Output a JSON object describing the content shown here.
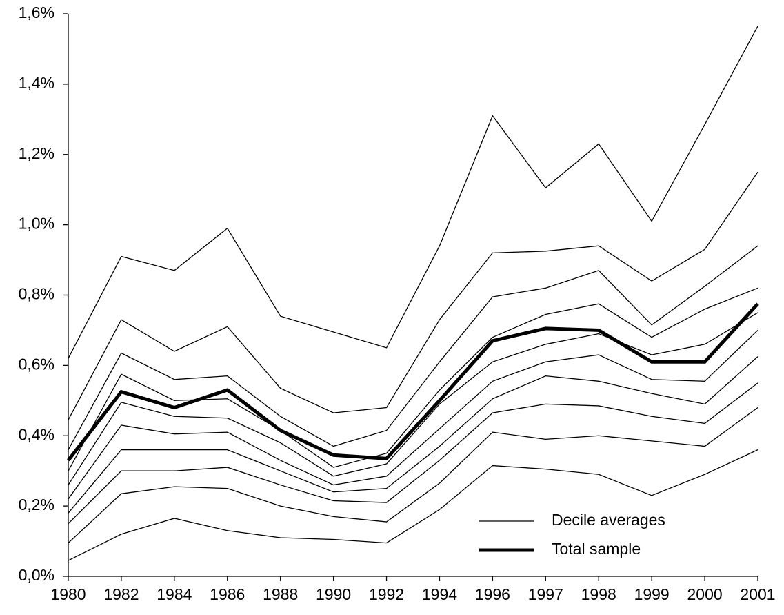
{
  "chart_data": {
    "type": "line",
    "categories": [
      "1980",
      "1982",
      "1984",
      "1986",
      "1988",
      "1990",
      "1992",
      "1994",
      "1996",
      "1997",
      "1998",
      "1999",
      "2000",
      "2001"
    ],
    "series": [
      {
        "name": "Decile averages",
        "color": "#000000",
        "width": 1.3,
        "values": [
          [
            0.62,
            0.91,
            0.87,
            0.99,
            0.74,
            0.695,
            0.65,
            0.94,
            1.31,
            1.105,
            1.23,
            1.01,
            1.285,
            1.565
          ],
          [
            0.445,
            0.73,
            0.64,
            0.71,
            0.535,
            0.465,
            0.48,
            0.73,
            0.92,
            0.925,
            0.94,
            0.84,
            0.93,
            1.15
          ],
          [
            0.36,
            0.635,
            0.56,
            0.57,
            0.455,
            0.37,
            0.415,
            0.61,
            0.795,
            0.82,
            0.87,
            0.715,
            0.825,
            0.94
          ],
          [
            0.3,
            0.575,
            0.5,
            0.505,
            0.415,
            0.31,
            0.35,
            0.53,
            0.68,
            0.745,
            0.775,
            0.68,
            0.76,
            0.82
          ],
          [
            0.26,
            0.495,
            0.455,
            0.45,
            0.38,
            0.285,
            0.32,
            0.49,
            0.61,
            0.66,
            0.69,
            0.63,
            0.66,
            0.75
          ],
          [
            0.22,
            0.43,
            0.405,
            0.41,
            0.33,
            0.26,
            0.285,
            0.42,
            0.555,
            0.61,
            0.63,
            0.56,
            0.555,
            0.7
          ],
          [
            0.18,
            0.36,
            0.36,
            0.36,
            0.3,
            0.24,
            0.25,
            0.37,
            0.505,
            0.57,
            0.555,
            0.52,
            0.49,
            0.625
          ],
          [
            0.15,
            0.3,
            0.3,
            0.31,
            0.26,
            0.215,
            0.21,
            0.33,
            0.465,
            0.49,
            0.485,
            0.455,
            0.435,
            0.55
          ],
          [
            0.095,
            0.235,
            0.255,
            0.25,
            0.2,
            0.17,
            0.155,
            0.265,
            0.41,
            0.39,
            0.4,
            0.385,
            0.37,
            0.48
          ],
          [
            0.045,
            0.12,
            0.165,
            0.13,
            0.11,
            0.105,
            0.095,
            0.19,
            0.315,
            0.305,
            0.29,
            0.23,
            0.29,
            0.36
          ]
        ]
      },
      {
        "name": "Total sample",
        "color": "#000000",
        "width": 5,
        "values": [
          0.33,
          0.525,
          0.48,
          0.53,
          0.415,
          0.345,
          0.335,
          0.5,
          0.67,
          0.705,
          0.7,
          0.61,
          0.61,
          0.775
        ]
      }
    ],
    "ylim": [
      0,
      1.6
    ],
    "yticks": [
      {
        "value": 0,
        "label": "0,0%"
      },
      {
        "value": 0.2,
        "label": "0,2%"
      },
      {
        "value": 0.4,
        "label": "0,4%"
      },
      {
        "value": 0.6,
        "label": "0,6%"
      },
      {
        "value": 0.8,
        "label": "0,8%"
      },
      {
        "value": 1.0,
        "label": "1,0%"
      },
      {
        "value": 1.2,
        "label": "1,2%"
      },
      {
        "value": 1.4,
        "label": "1,4%"
      },
      {
        "value": 1.6,
        "label": "1,6%"
      }
    ],
    "grid": false
  }
}
